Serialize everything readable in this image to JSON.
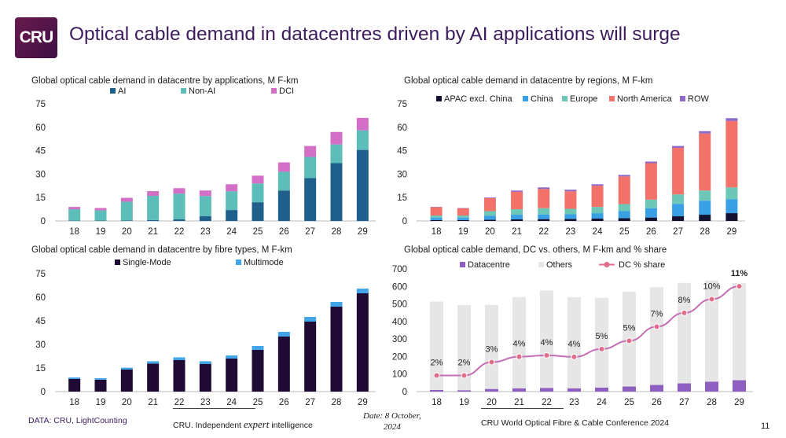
{
  "header": {
    "logo_text": "CRU",
    "title": "Optical cable demand in datacentres driven by AI applications will surge"
  },
  "footer": {
    "source": "DATA: CRU, LightCounting",
    "tagline_pre": "CRU. Independent ",
    "tagline_em": "expert",
    "tagline_post": " intelligence",
    "date_line1": "Date: 8 October,",
    "date_line2": "2024",
    "conference": "CRU World Optical Fibre & Cable Conference 2024",
    "page_number": "11"
  },
  "chart_data": [
    {
      "id": "applications",
      "type": "bar",
      "stacked": true,
      "title": "Global optical cable demand in datacentre by applications, M F-km",
      "categories": [
        "18",
        "19",
        "20",
        "21",
        "22",
        "23",
        "24",
        "25",
        "26",
        "27",
        "28",
        "29"
      ],
      "ylim": [
        0,
        75
      ],
      "yticks": [
        0,
        15,
        30,
        45,
        60,
        75
      ],
      "legend_position": "top",
      "series": [
        {
          "name": "AI",
          "color": "#1f5f8b",
          "values": [
            0.2,
            0.2,
            0.3,
            0.6,
            1.0,
            3.0,
            7.0,
            12.0,
            19.5,
            27.5,
            37.0,
            45.5
          ]
        },
        {
          "name": "Non-AI",
          "color": "#5cbdb9",
          "values": [
            7.3,
            6.6,
            12.0,
            15.5,
            16.5,
            13.0,
            12.0,
            12.0,
            12.0,
            13.5,
            12.0,
            12.5
          ]
        },
        {
          "name": "DCI",
          "color": "#d36fc6",
          "values": [
            1.5,
            1.5,
            2.5,
            3.0,
            3.5,
            3.5,
            4.5,
            5.0,
            6.0,
            7.0,
            8.0,
            8.0
          ]
        }
      ]
    },
    {
      "id": "regions",
      "type": "bar",
      "stacked": true,
      "title": "Global optical cable demand in datacentre by regions, M F-km",
      "categories": [
        "18",
        "19",
        "20",
        "21",
        "22",
        "23",
        "24",
        "25",
        "26",
        "27",
        "28",
        "29"
      ],
      "ylim": [
        0,
        75
      ],
      "yticks": [
        0,
        15,
        30,
        45,
        60,
        75
      ],
      "legend_position": "top",
      "series": [
        {
          "name": "APAC excl. China",
          "color": "#141233",
          "values": [
            0.5,
            0.5,
            0.8,
            1.0,
            1.2,
            1.3,
            1.5,
            1.8,
            2.2,
            3.0,
            4.0,
            5.0
          ]
        },
        {
          "name": "China",
          "color": "#3aa0e6",
          "values": [
            1.5,
            1.5,
            2.5,
            3.0,
            3.0,
            3.0,
            3.5,
            4.5,
            6.0,
            8.0,
            9.0,
            9.0
          ]
        },
        {
          "name": "Europe",
          "color": "#6cc7b7",
          "values": [
            1.5,
            1.5,
            3.0,
            3.5,
            4.0,
            3.5,
            4.0,
            4.5,
            5.5,
            6.0,
            6.5,
            7.5
          ]
        },
        {
          "name": "North America",
          "color": "#f27168",
          "values": [
            5.3,
            4.6,
            8.3,
            11.2,
            12.3,
            11.2,
            13.5,
            17.7,
            23.3,
            29.8,
            36.5,
            42.5
          ]
        },
        {
          "name": "ROW",
          "color": "#8e68c7",
          "values": [
            0.2,
            0.2,
            0.4,
            0.8,
            1.0,
            1.0,
            1.0,
            1.0,
            1.0,
            1.2,
            1.5,
            1.8
          ]
        }
      ]
    },
    {
      "id": "fibre_types",
      "type": "bar",
      "stacked": true,
      "title": "Global optical cable demand in datacentre by fibre types, M F-km",
      "categories": [
        "18",
        "19",
        "20",
        "21",
        "22",
        "23",
        "24",
        "25",
        "26",
        "27",
        "28",
        "29"
      ],
      "ylim": [
        0,
        75
      ],
      "yticks": [
        0,
        15,
        30,
        45,
        60,
        75
      ],
      "legend_position": "top",
      "series": [
        {
          "name": "Single-Mode",
          "color": "#1e0a33",
          "values": [
            8.0,
            7.5,
            14.0,
            17.8,
            20.0,
            17.5,
            21.0,
            26.5,
            35.0,
            44.5,
            54.0,
            62.5
          ]
        },
        {
          "name": "Multimode",
          "color": "#41a5e8",
          "values": [
            1.0,
            1.0,
            1.2,
            1.5,
            1.8,
            1.8,
            2.0,
            2.5,
            3.0,
            3.0,
            3.0,
            3.0
          ]
        }
      ]
    },
    {
      "id": "dc_vs_others",
      "type": "bar",
      "stacked": true,
      "title": "Global optical cable demand, DC vs. others, M F-km and % share",
      "categories": [
        "18",
        "19",
        "20",
        "21",
        "22",
        "23",
        "24",
        "25",
        "26",
        "27",
        "28",
        "29"
      ],
      "ylim": [
        0,
        700
      ],
      "yticks": [
        0,
        100,
        200,
        300,
        400,
        500,
        600,
        700
      ],
      "legend_position": "top",
      "series": [
        {
          "name": "Datacentre",
          "color": "#8e5fc0",
          "values": [
            9,
            8,
            15,
            19,
            21,
            19,
            23,
            29,
            38,
            47,
            57,
            65
          ]
        },
        {
          "name": "Others",
          "color": "#e6e6e6",
          "values": [
            505,
            486,
            480,
            520,
            556,
            519,
            512,
            541,
            558,
            573,
            577,
            555
          ]
        }
      ],
      "line_series": {
        "name": "DC % share",
        "color": "#e06d8a",
        "values": [
          2,
          2,
          3,
          4,
          4,
          4,
          5,
          5,
          7,
          8,
          10,
          11
        ],
        "labels": [
          "2%",
          "2%",
          "3%",
          "4%",
          "4%",
          "4%",
          "5%",
          "5%",
          "7%",
          "8%",
          "10%",
          "11%"
        ],
        "plot_positions": [
          92,
          92,
          168,
          199,
          207,
          198,
          243,
          290,
          370,
          449,
          527,
          601
        ]
      }
    }
  ]
}
